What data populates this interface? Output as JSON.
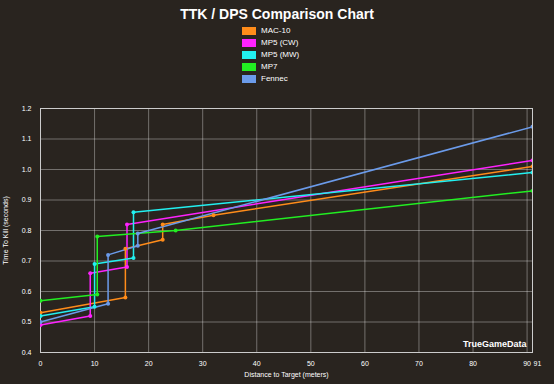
{
  "chart_data": {
    "type": "line",
    "title": "TTK / DPS Comparison Chart",
    "x_label": "Distance to Target (meters)",
    "y_label": "Time To Kill (seconds)",
    "watermark": "TrueGameData",
    "xlim": [
      0,
      91
    ],
    "xticks": [
      0,
      10,
      20,
      30,
      40,
      50,
      60,
      70,
      80,
      90,
      91
    ],
    "ylim": [
      0.4,
      1.2
    ],
    "yticks": [
      0.4,
      0.5,
      0.6,
      0.7,
      0.8,
      0.9,
      {
        "value": 1.0,
        "label": "1.0"
      },
      1.1,
      1.2
    ],
    "grid": true,
    "legend": "top",
    "marker": "circle",
    "series": [
      {
        "name": "MAC-10",
        "color": "#ff8c1a",
        "x": [
          0,
          15.7,
          15.7,
          22.6,
          22.6,
          32,
          91
        ],
        "values": [
          0.53,
          0.58,
          0.74,
          0.77,
          0.82,
          0.85,
          1.01
        ]
      },
      {
        "name": "MP5 (CW)",
        "color": "#ff22ff",
        "x": [
          0,
          9.2,
          9.2,
          16,
          16,
          91
        ],
        "values": [
          0.49,
          0.52,
          0.66,
          0.68,
          0.82,
          1.03
        ]
      },
      {
        "name": "MP5 (MW)",
        "color": "#22f0f0",
        "x": [
          0,
          10,
          10,
          17.2,
          17.2,
          91
        ],
        "values": [
          0.52,
          0.55,
          0.69,
          0.71,
          0.86,
          0.99
        ]
      },
      {
        "name": "MP7",
        "color": "#22ee22",
        "x": [
          0,
          10.5,
          10.5,
          25,
          91
        ],
        "values": [
          0.57,
          0.59,
          0.78,
          0.8,
          0.93
        ]
      },
      {
        "name": "Fennec",
        "color": "#6b9bea",
        "x": [
          0,
          12.5,
          12.5,
          18,
          18,
          91
        ],
        "values": [
          0.5,
          0.56,
          0.72,
          0.75,
          0.79,
          1.14
        ]
      }
    ]
  }
}
